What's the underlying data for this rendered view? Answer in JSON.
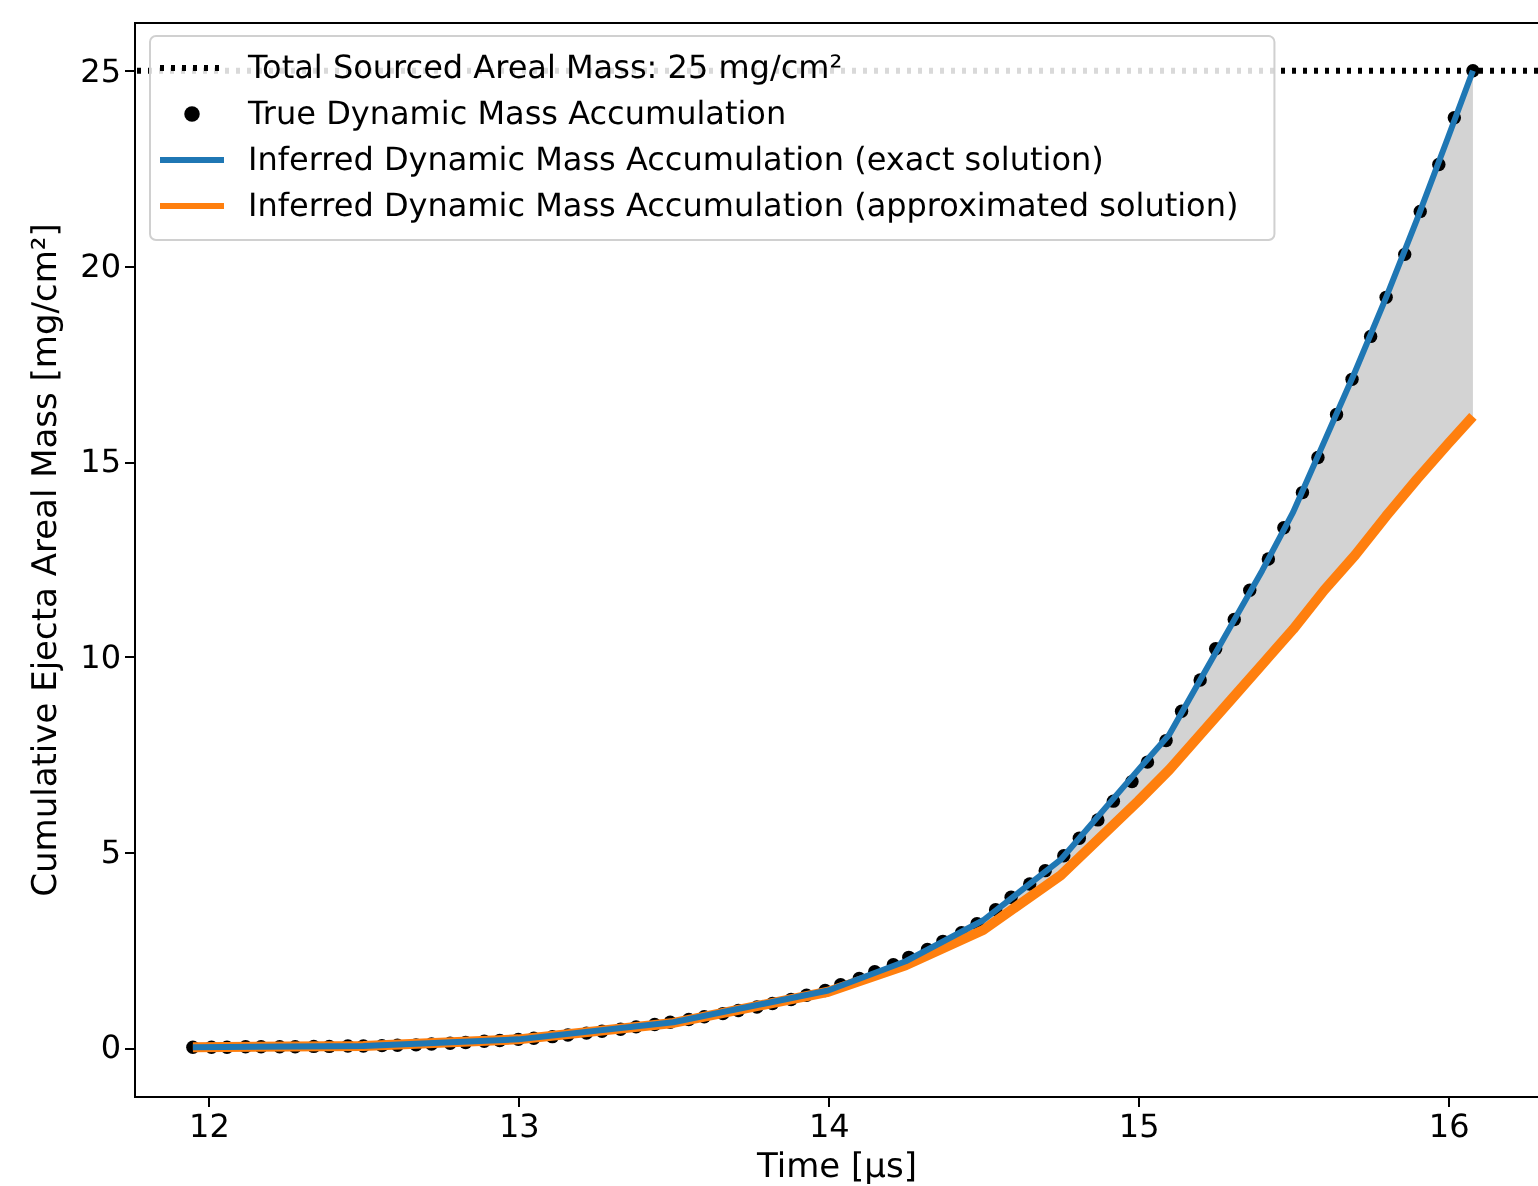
{
  "chart_data": {
    "type": "line",
    "xlabel": "Time [μs]",
    "ylabel": "Cumulative Ejecta Areal Mass [mg/cm²]",
    "xlim": [
      11.76,
      16.29
    ],
    "ylim": [
      -1.25,
      26.25
    ],
    "xticks": [
      12,
      13,
      14,
      15,
      16
    ],
    "yticks": [
      0,
      5,
      10,
      15,
      20,
      25
    ],
    "grid": false,
    "legend": "top left",
    "ref_lines": [
      {
        "axis": "y",
        "value": 25,
        "label": "Total Sourced Areal Mass: 25 mg/cm²",
        "color": "#000000",
        "line_style": "dotted"
      }
    ],
    "series": [
      {
        "name": "True Dynamic Mass Accumulation",
        "type": "scatter",
        "marker": "circle",
        "color": "#000000",
        "x": [
          11.95,
          12.01,
          12.06,
          12.12,
          12.17,
          12.23,
          12.28,
          12.34,
          12.39,
          12.45,
          12.5,
          12.56,
          12.61,
          12.67,
          12.72,
          12.78,
          12.83,
          12.89,
          12.94,
          13.0,
          13.05,
          13.11,
          13.16,
          13.22,
          13.27,
          13.33,
          13.38,
          13.44,
          13.49,
          13.55,
          13.6,
          13.66,
          13.71,
          13.77,
          13.82,
          13.88,
          13.93,
          13.99,
          14.04,
          14.1,
          14.15,
          14.21,
          14.26,
          14.32,
          14.37,
          14.43,
          14.48,
          14.54,
          14.59,
          14.65,
          14.7,
          14.76,
          14.81,
          14.87,
          14.92,
          14.98,
          15.03,
          15.09,
          15.14,
          15.2,
          15.25,
          15.31,
          15.36,
          15.42,
          15.47,
          15.53,
          15.58,
          15.64,
          15.69,
          15.75,
          15.8,
          15.86,
          15.91,
          15.97,
          16.02,
          16.08
        ],
        "values": [
          0,
          0,
          0,
          0.01,
          0.01,
          0.01,
          0.01,
          0.02,
          0.02,
          0.03,
          0.03,
          0.04,
          0.05,
          0.06,
          0.08,
          0.1,
          0.12,
          0.15,
          0.17,
          0.2,
          0.23,
          0.27,
          0.31,
          0.36,
          0.41,
          0.46,
          0.52,
          0.58,
          0.64,
          0.71,
          0.78,
          0.86,
          0.94,
          1.03,
          1.12,
          1.22,
          1.33,
          1.45,
          1.6,
          1.76,
          1.93,
          2.11,
          2.3,
          2.5,
          2.71,
          2.93,
          3.16,
          3.52,
          3.84,
          4.18,
          4.52,
          4.9,
          5.35,
          5.82,
          6.3,
          6.8,
          7.3,
          7.85,
          8.6,
          9.4,
          10.2,
          10.95,
          11.7,
          12.5,
          13.3,
          14.2,
          15.1,
          16.2,
          17.1,
          18.2,
          19.2,
          20.3,
          21.4,
          22.6,
          23.8,
          25
        ]
      },
      {
        "name": "Inferred Dynamic Mass Accumulation (exact solution)",
        "color": "#1f77b4",
        "x": [
          11.95,
          12.5,
          13.0,
          13.5,
          14.0,
          14.25,
          14.5,
          14.75,
          15.0,
          15.1,
          15.2,
          15.3,
          15.4,
          15.5,
          15.6,
          15.7,
          15.8,
          15.9,
          16.0,
          16.08
        ],
        "values": [
          0,
          0.03,
          0.2,
          0.64,
          1.45,
          2.2,
          3.25,
          4.8,
          7.1,
          8.0,
          9.4,
          10.8,
          12.2,
          13.7,
          15.5,
          17.3,
          19.2,
          21.2,
          23.3,
          25
        ],
        "lower": [
          0,
          0.03,
          0.2,
          0.62,
          1.42,
          2.1,
          3.0,
          4.4,
          6.3,
          7.1,
          8.0,
          8.9,
          9.8,
          10.7,
          11.7,
          12.6,
          13.6,
          14.55,
          15.45,
          16.15
        ],
        "upper": [
          0,
          0.03,
          0.2,
          0.64,
          1.45,
          2.2,
          3.25,
          4.8,
          7.1,
          8.0,
          9.4,
          10.8,
          12.2,
          13.7,
          15.5,
          17.3,
          19.2,
          21.2,
          23.3,
          25
        ]
      },
      {
        "name": "Inferred Dynamic Mass Accumulation (approximated solution)",
        "color": "#ff7f0e",
        "x": [
          11.95,
          12.5,
          13.0,
          13.5,
          14.0,
          14.25,
          14.5,
          14.75,
          15.0,
          15.1,
          15.2,
          15.3,
          15.4,
          15.5,
          15.6,
          15.7,
          15.8,
          15.9,
          16.0,
          16.08
        ],
        "values": [
          0,
          0.03,
          0.2,
          0.62,
          1.42,
          2.1,
          3.0,
          4.4,
          6.3,
          7.1,
          8.0,
          8.9,
          9.8,
          10.7,
          11.7,
          12.6,
          13.6,
          14.55,
          15.45,
          16.15
        ]
      }
    ]
  }
}
